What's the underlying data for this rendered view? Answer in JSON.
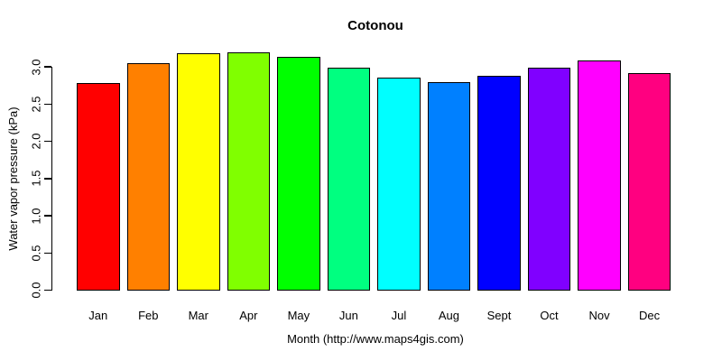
{
  "chart_data": {
    "type": "bar",
    "title": "Cotonou",
    "xlabel": "Month (http://www.maps4gis.com)",
    "ylabel": "Water vapor pressure (kPa)",
    "categories": [
      "Jan",
      "Feb",
      "Mar",
      "Apr",
      "May",
      "Jun",
      "Jul",
      "Aug",
      "Sept",
      "Oct",
      "Nov",
      "Dec"
    ],
    "values": [
      2.78,
      3.05,
      3.18,
      3.19,
      3.13,
      2.99,
      2.86,
      2.8,
      2.88,
      2.99,
      3.08,
      2.91
    ],
    "bar_colors": [
      "#FF0000",
      "#FF8000",
      "#FFFF00",
      "#80FF00",
      "#00FF00",
      "#00FF80",
      "#00FFFF",
      "#0080FF",
      "#0000FF",
      "#8000FF",
      "#FF00FF",
      "#FF0080"
    ],
    "bar_border_color": "#000000",
    "background_color": "#FFFFFF",
    "text_color": "#000000",
    "ylim": [
      0.0,
      3.0
    ],
    "yticks": [
      "0.0",
      "0.5",
      "1.0",
      "1.5",
      "2.0",
      "2.5",
      "3.0"
    ],
    "ytick_orientation": "rotated-90",
    "grid": false,
    "legend": "none"
  }
}
